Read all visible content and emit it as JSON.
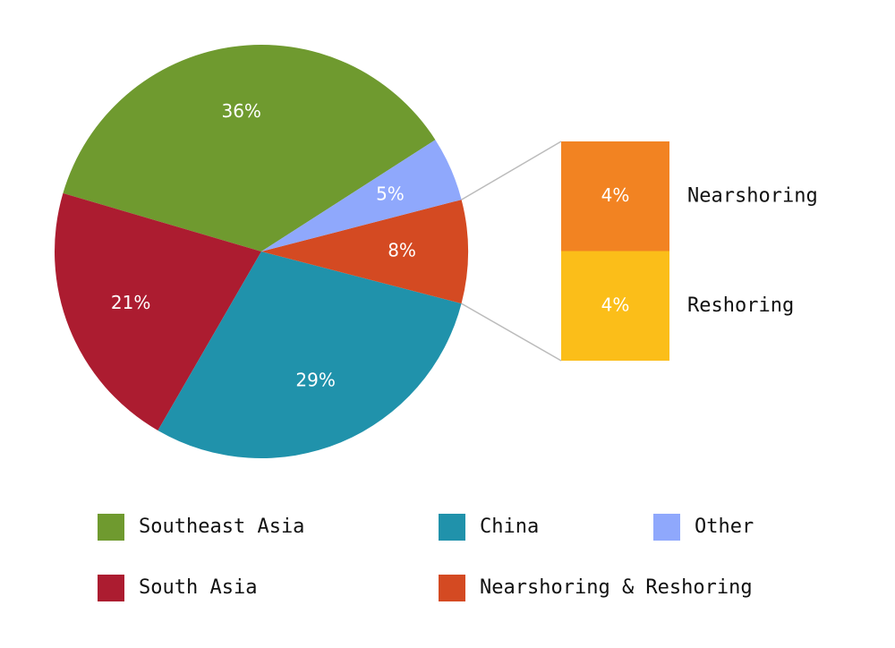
{
  "chart_data": [
    {
      "type": "pie",
      "categories": [
        "Southeast Asia",
        "South Asia",
        "China",
        "Nearshoring & Reshoring",
        "Other"
      ],
      "values": [
        36,
        21,
        29,
        8,
        5
      ],
      "value_labels": [
        "36%",
        "21%",
        "29%",
        "8%",
        "5%"
      ],
      "colors": [
        "#6f9a2f",
        "#ac1c30",
        "#2092ab",
        "#d44a22",
        "#8fa8fc"
      ]
    },
    {
      "type": "bar",
      "categories": [
        "Nearshoring",
        "Reshoring"
      ],
      "values": [
        4,
        4
      ],
      "value_labels": [
        "4%",
        "4%"
      ],
      "colors": [
        "#f28322",
        "#fbbe19"
      ]
    }
  ]
}
